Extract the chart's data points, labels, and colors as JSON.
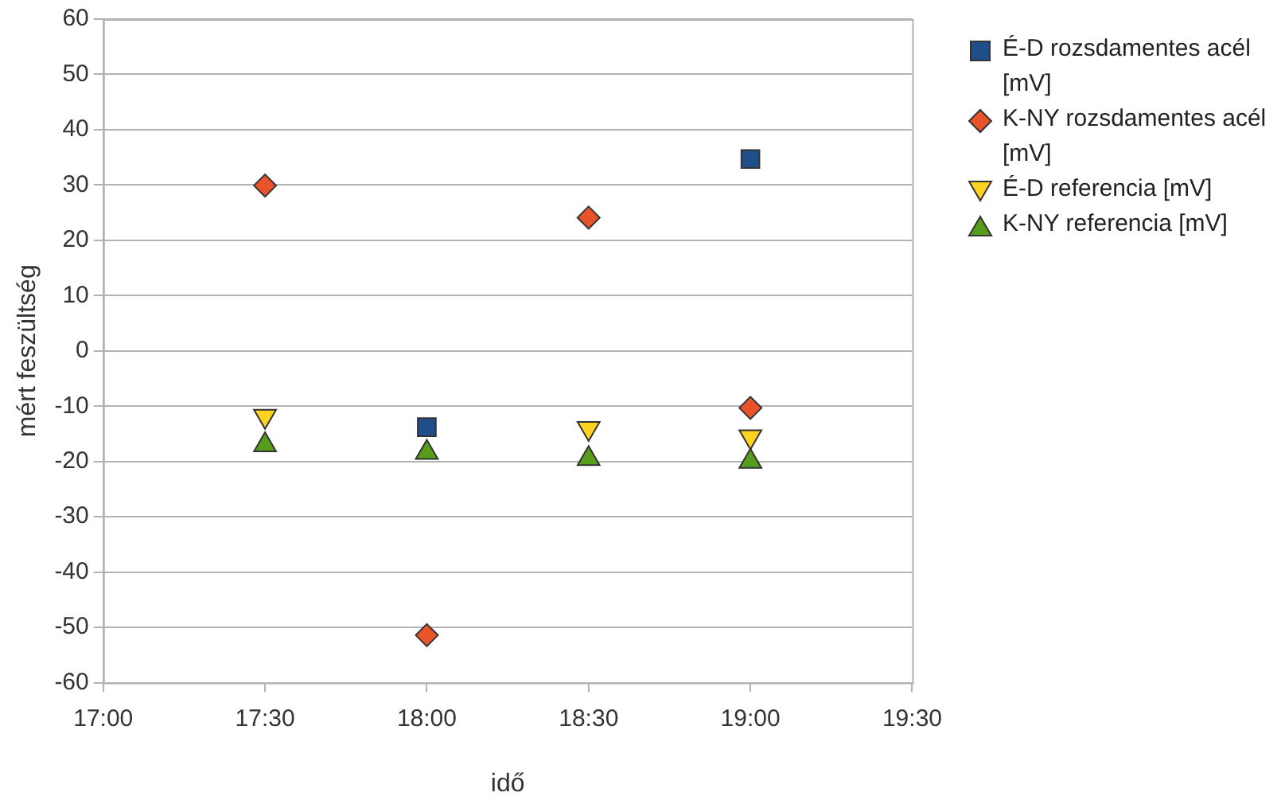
{
  "chart_data": {
    "type": "scatter",
    "xlabel": "idő",
    "ylabel": "mért feszültség",
    "grid": "y",
    "legend": "right",
    "xlim": [
      17,
      19.5
    ],
    "xticks": [
      {
        "value": 17,
        "label": "17:00"
      },
      {
        "value": 17.5,
        "label": "17:30"
      },
      {
        "value": 18,
        "label": "18:00"
      },
      {
        "value": 18.5,
        "label": "18:30"
      },
      {
        "value": 19,
        "label": "19:00"
      },
      {
        "value": 19.5,
        "label": "19:30"
      }
    ],
    "ylim": [
      -60,
      60
    ],
    "yticks": [
      -60,
      -50,
      -40,
      -30,
      -20,
      -10,
      0,
      10,
      20,
      30,
      40,
      50,
      60
    ],
    "x": [
      17.5,
      18,
      18.5,
      19
    ],
    "series": [
      {
        "name": "É-D rozsdamentes acél [mV]",
        "color": "#1f4e89",
        "marker": "square",
        "values": [
          null,
          -13.8,
          null,
          34.7
        ]
      },
      {
        "name": "K-NY rozsdamentes acél [mV]",
        "color": "#e8532a",
        "marker": "diamond",
        "values": [
          29.9,
          -51.4,
          24.1,
          -10.3
        ]
      },
      {
        "name": "É-D referencia [mV]",
        "color": "#ffd320",
        "marker": "triangle-down",
        "values": [
          -11.8,
          null,
          -14,
          -15.5
        ]
      },
      {
        "name": "K-NY referencia [mV]",
        "color": "#579d1c",
        "marker": "triangle",
        "values": [
          -17,
          -18.4,
          -19.5,
          -20
        ]
      }
    ]
  }
}
